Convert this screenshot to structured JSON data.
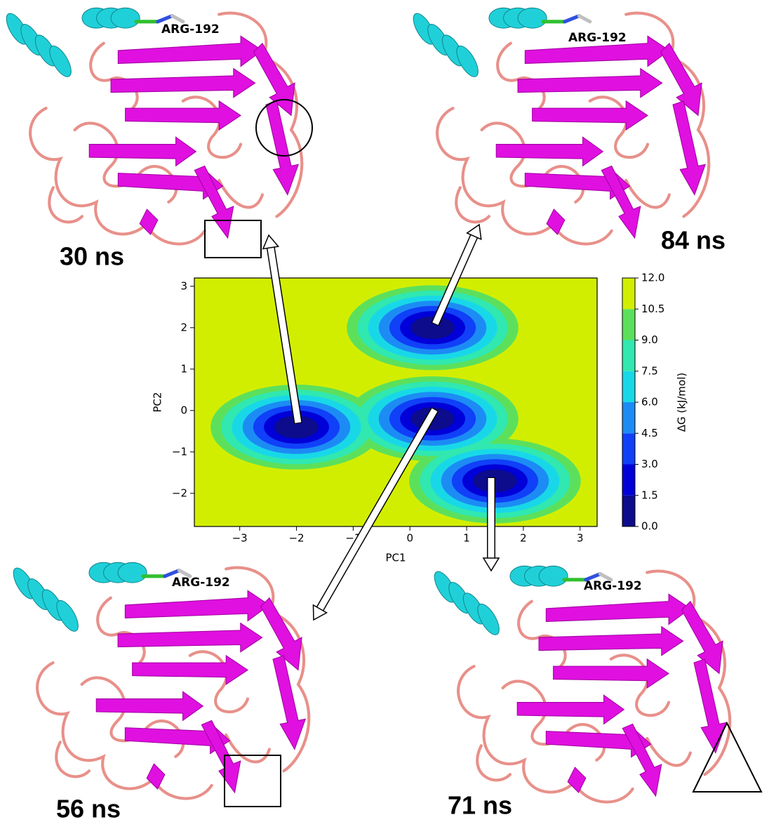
{
  "chart_data": {
    "type": "contour",
    "xlabel": "PC1",
    "ylabel": "PC2",
    "colorbar_label": "ΔG (kJ/mol)",
    "xlim": [
      -3.8,
      3.3
    ],
    "ylim": [
      -2.8,
      3.2
    ],
    "xticks": [
      {
        "value": -3,
        "label": "−3"
      },
      {
        "value": -2,
        "label": "−2"
      },
      {
        "value": -1,
        "label": "−1"
      },
      0,
      1,
      2,
      3
    ],
    "yticks": [
      {
        "value": -2,
        "label": "−2"
      },
      {
        "value": -1,
        "label": "−1"
      },
      0,
      1,
      2,
      3
    ],
    "levels": [
      {
        "value": 0,
        "label": "0.0"
      },
      1.5,
      {
        "value": 3,
        "label": "3.0"
      },
      4.5,
      {
        "value": 6,
        "label": "6.0"
      },
      7.5,
      {
        "value": 9,
        "label": "9.0"
      },
      10.5,
      {
        "value": 12,
        "label": "12.0"
      }
    ],
    "colors": [
      "#0c0c8c",
      "#0000d8",
      "#1040f8",
      "#1c8cf4",
      "#18d8e8",
      "#30e8b0",
      "#5ce05c",
      "#d2ee00"
    ],
    "minima": [
      {
        "x": -2,
        "y": -0.4
      },
      {
        "x": 0.4,
        "y": 2
      },
      {
        "x": 0.4,
        "y": -0.2
      },
      {
        "x": 1.5,
        "y": -1.7
      }
    ]
  },
  "panels": [
    {
      "time": "30 ns",
      "residue": "ARG-192"
    },
    {
      "time": "84 ns",
      "residue": "ARG-192"
    },
    {
      "time": "56 ns",
      "residue": "ARG-192"
    },
    {
      "time": "71 ns",
      "residue": "ARG-192"
    }
  ]
}
